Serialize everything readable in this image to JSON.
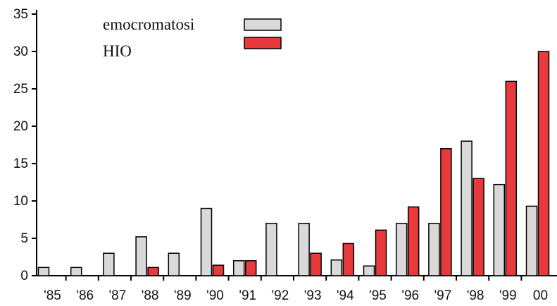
{
  "chart_data": {
    "type": "bar",
    "categories": [
      "'85",
      "'86",
      "'87",
      "'88",
      "'89",
      "'90",
      "'91",
      "'92",
      "'93",
      "'94",
      "'95",
      "'96",
      "'97",
      "'98",
      "'99",
      "00"
    ],
    "series": [
      {
        "name": "emocromatosi",
        "color": "#d9d9d9",
        "values": [
          1.1,
          1.1,
          3,
          5.2,
          3,
          9,
          2,
          7,
          7,
          2.1,
          1.3,
          7,
          7,
          18,
          12.2,
          9.3
        ]
      },
      {
        "name": "HIO",
        "color": "#e8393c",
        "values": [
          0,
          0,
          0,
          1.1,
          0,
          1.4,
          2,
          0,
          3,
          4.3,
          6.1,
          9.2,
          17,
          13,
          26,
          30
        ]
      }
    ],
    "yticks": [
      "0",
      "5",
      "10",
      "15",
      "20",
      "25",
      "30",
      "35"
    ],
    "ylim": [
      0,
      35
    ],
    "xlabel": "",
    "ylabel": "",
    "legend_position": "top-center",
    "grid": false
  }
}
